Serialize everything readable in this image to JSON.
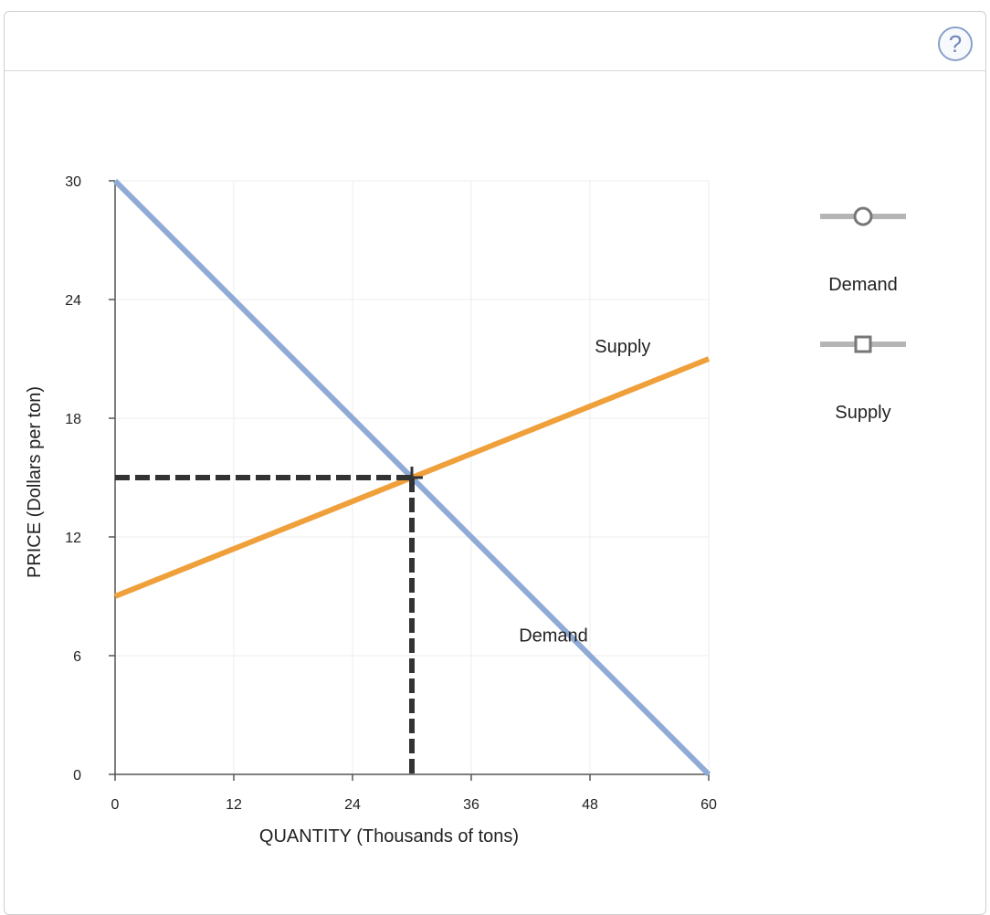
{
  "help": {
    "symbol": "?",
    "icon": "question-mark-icon"
  },
  "chart_data": {
    "type": "line",
    "xlabel": "QUANTITY (Thousands of tons)",
    "ylabel": "PRICE (Dollars per ton)",
    "xlim": [
      0,
      60
    ],
    "ylim": [
      0,
      30
    ],
    "xticks": [
      0,
      12,
      24,
      36,
      48,
      60
    ],
    "yticks": [
      0,
      6,
      12,
      18,
      24,
      30
    ],
    "grid": true,
    "series": [
      {
        "name": "Demand",
        "color": "#8eabd6",
        "x": [
          0,
          60
        ],
        "y": [
          30,
          0
        ],
        "label": "Demand",
        "label_at": [
          48,
          7
        ]
      },
      {
        "name": "Supply",
        "color": "#f0a03a",
        "x": [
          0,
          60
        ],
        "y": [
          9,
          21
        ],
        "label": "Supply",
        "label_at": [
          55,
          21.6
        ]
      }
    ],
    "equilibrium": {
      "x": 30,
      "y": 15,
      "marker": "cross"
    },
    "legend": {
      "placement": "right",
      "items": [
        {
          "name": "Demand",
          "marker": "circle"
        },
        {
          "name": "Supply",
          "marker": "square"
        }
      ]
    }
  }
}
